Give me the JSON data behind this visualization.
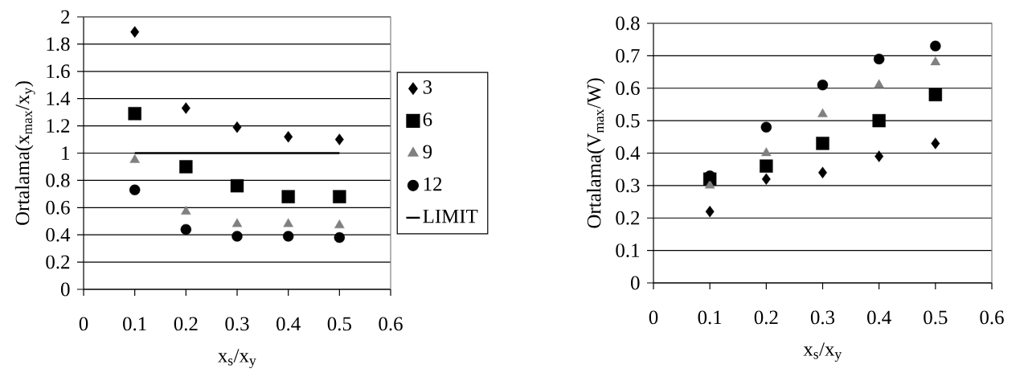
{
  "chart_data": [
    {
      "type": "scatter",
      "xlabel": "x$_{s}$/x$_{y}$",
      "ylabel": "Ortalama(x$_{max}$/x$_{y}$)",
      "xlim": [
        0,
        0.6
      ],
      "xticks": [
        0,
        0.1,
        0.2,
        0.3,
        0.4,
        0.5,
        0.6
      ],
      "ylim": [
        0,
        2
      ],
      "yticks": [
        0,
        0.2,
        0.4,
        0.6,
        0.8,
        1,
        1.2,
        1.4,
        1.6,
        1.8,
        2
      ],
      "grid": "y",
      "legend": "right",
      "x": [
        0.1,
        0.2,
        0.3,
        0.4,
        0.5
      ],
      "series": [
        {
          "name": "3",
          "color": "#000000",
          "marker": "diamond",
          "values": [
            1.89,
            1.33,
            1.19,
            1.12,
            1.1
          ]
        },
        {
          "name": "6",
          "color": "#000000",
          "marker": "square",
          "values": [
            1.29,
            0.9,
            0.76,
            0.68,
            0.68
          ]
        },
        {
          "name": "9",
          "color": "#808080",
          "marker": "triangle",
          "values": [
            0.95,
            0.57,
            0.48,
            0.48,
            0.47
          ]
        },
        {
          "name": "12",
          "color": "#000000",
          "marker": "circle",
          "values": [
            0.73,
            0.44,
            0.39,
            0.39,
            0.38
          ]
        },
        {
          "name": "LIMIT",
          "type": "line",
          "color": "#000000",
          "marker": "none",
          "x": [
            0.1,
            0.5
          ],
          "values": [
            1,
            1
          ]
        }
      ]
    },
    {
      "type": "scatter",
      "xlabel": "x$_{s}$/x$_{y}$",
      "ylabel": "Ortalama(V$_{max}$/W)",
      "xlim": [
        0,
        0.6
      ],
      "xticks": [
        0,
        0.1,
        0.2,
        0.3,
        0.4,
        0.5,
        0.6
      ],
      "ylim": [
        0,
        0.8
      ],
      "yticks": [
        0,
        0.1,
        0.2,
        0.3,
        0.4,
        0.5,
        0.6,
        0.7,
        0.8
      ],
      "grid": "y",
      "x": [
        0.1,
        0.2,
        0.3,
        0.4,
        0.5
      ],
      "series": [
        {
          "color": "#000000",
          "marker": "diamond",
          "values": [
            0.22,
            0.32,
            0.34,
            0.39,
            0.43
          ]
        },
        {
          "color": "#000000",
          "marker": "square",
          "values": [
            0.32,
            0.36,
            0.43,
            0.5,
            0.58
          ]
        },
        {
          "color": "#808080",
          "marker": "triangle",
          "values": [
            0.3,
            0.4,
            0.52,
            0.61,
            0.68
          ]
        },
        {
          "color": "#000000",
          "marker": "circle",
          "values": [
            0.33,
            0.48,
            0.61,
            0.69,
            0.73
          ]
        }
      ]
    }
  ]
}
